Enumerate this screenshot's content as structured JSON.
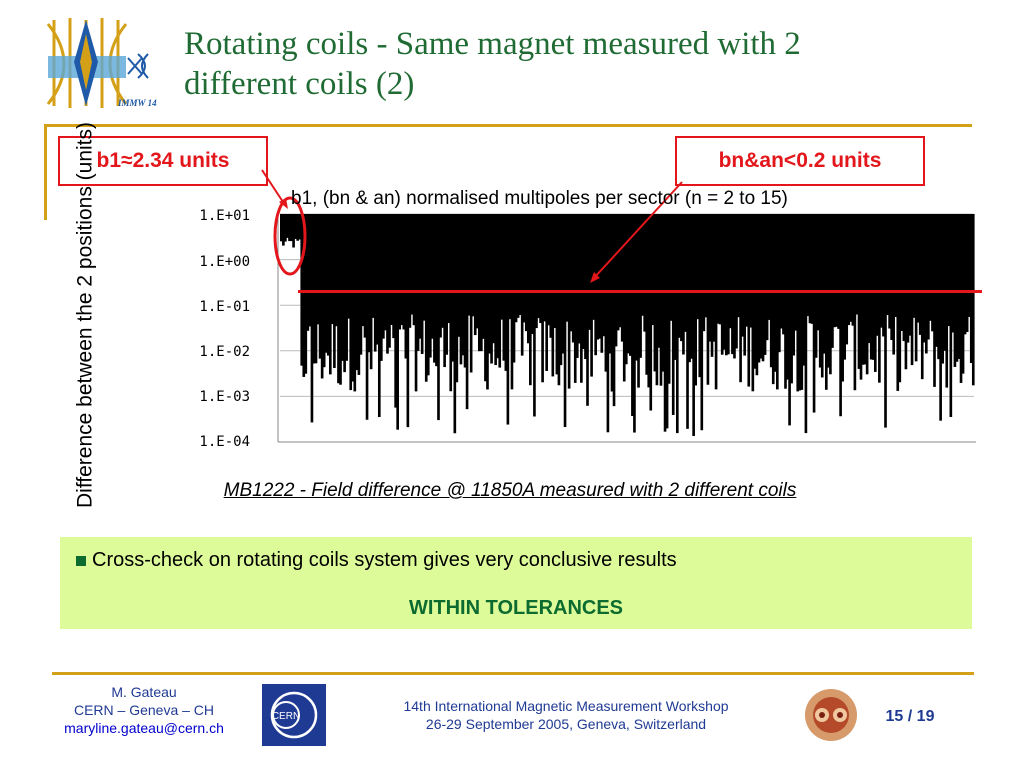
{
  "slide": {
    "title_line1": "Rotating coils - Same magnet measured with 2",
    "title_line2": "different coils (2)",
    "logo_text": "IMMW 14"
  },
  "callouts": {
    "b1": "b1≈2.34 units",
    "bn_an": "bn&an<0.2 units"
  },
  "chart_data": {
    "type": "bar",
    "title": "b1, (bn & an) normalised multipoles per sector (n = 2 to 15)",
    "ylabel": "Difference between the 2 positions (units)",
    "yscale": "log",
    "ylim": [
      0.0001,
      10
    ],
    "y_ticks": [
      "1.E-04",
      "1.E-03",
      "1.E-02",
      "1.E-01",
      "1.E+00",
      "1.E+01"
    ],
    "reference_line": 0.2,
    "caption": "MB1222 - Field difference @ 11850A measured with 2 different coils",
    "colors": {
      "bars": "#000000",
      "reference_line": "#e3161b",
      "highlight": "#e3161b"
    }
  },
  "result": {
    "bullet": "Cross-check on rotating coils system gives very conclusive results",
    "conclusion": "WITHIN TOLERANCES"
  },
  "footer": {
    "author": "M. Gateau",
    "org": "CERN – Geneva – CH",
    "email": "maryline.gateau@cern.ch",
    "cern_logo": "CERN",
    "event_line1": "14th International Magnetic Measurement Workshop",
    "event_line2": "26-29 September 2005, Geneva, Switzerland",
    "page_current": "15",
    "page_sep": " / ",
    "page_total": "19"
  }
}
